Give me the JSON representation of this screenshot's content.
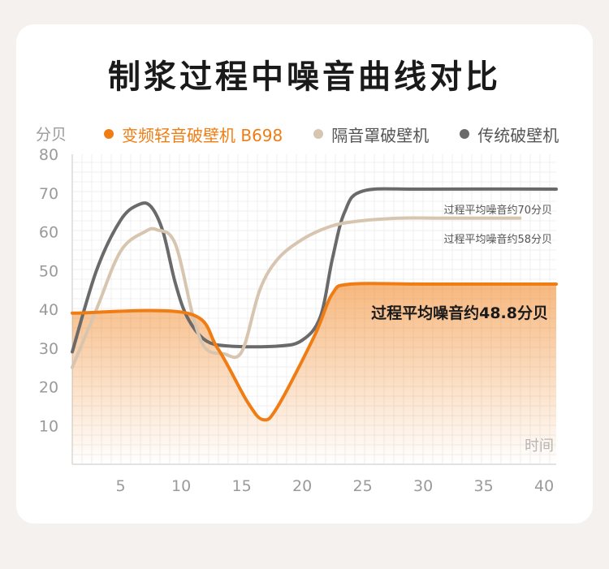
{
  "chart_data": {
    "type": "line",
    "title": "制浆过程中噪音曲线对比",
    "ylabel": "分贝",
    "xlabel": "时间",
    "xlim": [
      1,
      41
    ],
    "ylim": [
      0,
      80
    ],
    "xticks": [
      5,
      10,
      15,
      20,
      25,
      30,
      35,
      40
    ],
    "yticks": [
      10,
      20,
      30,
      40,
      50,
      60,
      70,
      80
    ],
    "grid": true,
    "legend_position": "top",
    "series": [
      {
        "name": "变频轻音破壁机 B698",
        "color": "#f07d14",
        "x": [
          1,
          10.5,
          13,
          15.5,
          16.8,
          18,
          21,
          22.5,
          24,
          30,
          41
        ],
        "y": [
          39,
          39,
          30,
          16,
          11.5,
          15,
          33,
          44,
          46.5,
          46.5,
          46.5
        ],
        "annotation": "过程平均噪音约48.8分贝"
      },
      {
        "name": "隔音罩破壁机",
        "color": "#d7c5b0",
        "x": [
          1,
          3,
          5,
          7,
          8,
          9.5,
          11,
          12,
          13.5,
          15,
          16.5,
          18,
          20,
          22,
          24,
          28,
          32,
          38
        ],
        "y": [
          25,
          40,
          55,
          60,
          60.5,
          57,
          38,
          30,
          28.5,
          29,
          45,
          53,
          58,
          61,
          62.5,
          63.5,
          63.5,
          63.5
        ],
        "annotation": "过程平均噪音约58分贝"
      },
      {
        "name": "传统破壁机",
        "color": "#6a6a6a",
        "x": [
          1,
          3,
          5,
          6.5,
          7.5,
          8.5,
          9.5,
          10.5,
          12,
          14,
          18,
          20,
          21.5,
          22.5,
          23.5,
          25,
          30,
          41
        ],
        "y": [
          29,
          50,
          63,
          67,
          66.5,
          60,
          47,
          38,
          32,
          30.5,
          30.5,
          32,
          38,
          53,
          65,
          70.5,
          71,
          71
        ],
        "annotation": "过程平均噪音约70分贝"
      }
    ]
  }
}
